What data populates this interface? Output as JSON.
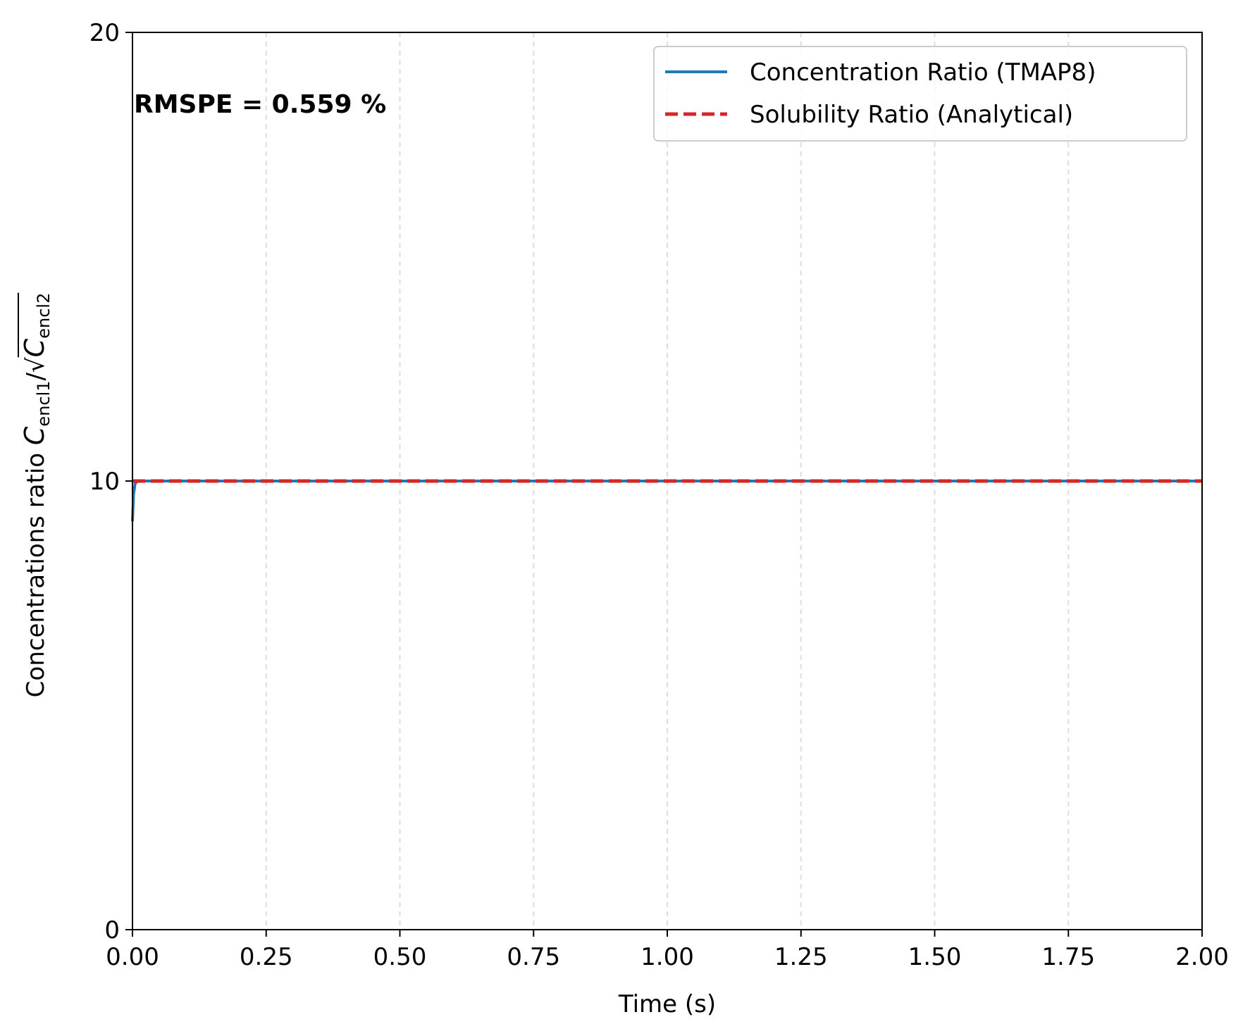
{
  "chart_data": {
    "type": "line",
    "xlabel": "Time (s)",
    "ylabel": {
      "prefix": "Concentrations ratio ",
      "c1": "C",
      "sub1": "encl1",
      "slash": "/",
      "sqrt": "√",
      "c2": "C",
      "sub2": "encl2"
    },
    "xlim": [
      0,
      2
    ],
    "ylim": [
      0,
      20
    ],
    "xticks": [
      0,
      0.25,
      0.5,
      0.75,
      1.0,
      1.25,
      1.5,
      1.75,
      2.0
    ],
    "xtick_labels": [
      "0.00",
      "0.25",
      "0.50",
      "0.75",
      "1.00",
      "1.25",
      "1.50",
      "1.75",
      "2.00"
    ],
    "yticks": [
      0,
      10,
      20
    ],
    "ytick_labels": [
      "0",
      "10",
      "20"
    ],
    "grid": "x-dashed",
    "legend_position": "top-right",
    "annotation": "RMSPE = 0.559 %",
    "series": [
      {
        "name": "Concentration Ratio (TMAP8)",
        "style": "solid",
        "color": "#1f77b4",
        "x": [
          0,
          0.002,
          0.005,
          0.01,
          0.02,
          0.05,
          0.1,
          0.5,
          1.0,
          1.5,
          2.0
        ],
        "y": [
          9.1,
          9.7,
          9.95,
          10.0,
          10.0,
          10.0,
          10.0,
          10.0,
          10.0,
          10.0,
          10.0
        ]
      },
      {
        "name": "Solubility Ratio (Analytical)",
        "style": "dashed",
        "color": "#d62728",
        "x": [
          0,
          2.0
        ],
        "y": [
          10.0,
          10.0
        ]
      }
    ]
  }
}
